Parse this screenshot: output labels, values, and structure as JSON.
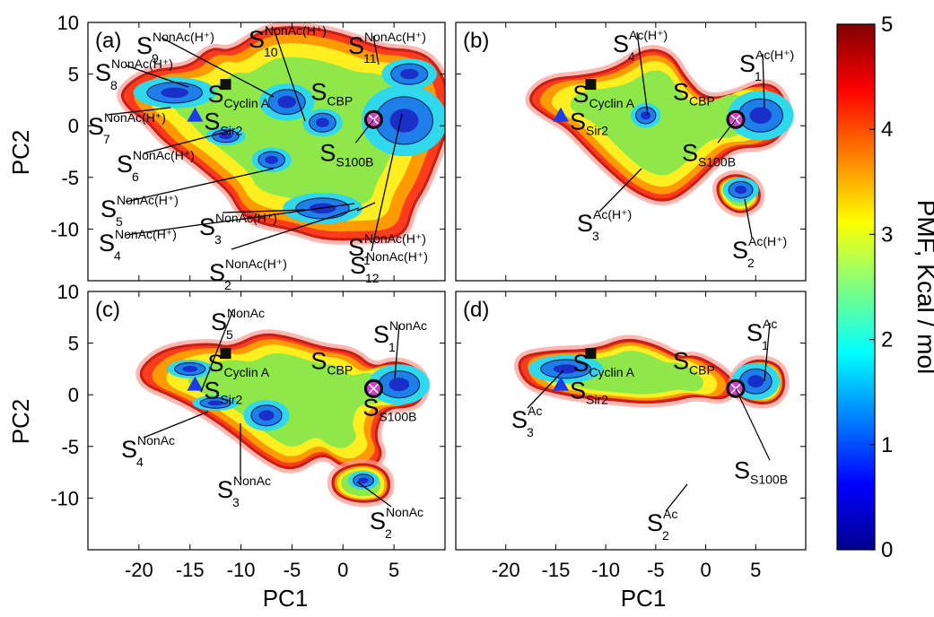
{
  "chart_data": {
    "type": "heatmap",
    "shared_axes": {
      "xlabel": "PC1",
      "ylabel": "PC2",
      "xticks": [
        "-20",
        "-15",
        "-10",
        "-5",
        "0",
        "5"
      ],
      "yticks": [
        "10",
        "5",
        "0",
        "-5",
        "-10"
      ],
      "xlim": [
        -25,
        10
      ],
      "ylim": [
        -15,
        10
      ]
    },
    "colorbar": {
      "title": "PMF, Kcal / mol",
      "range": [
        0,
        5
      ],
      "ticks": [
        "5",
        "4",
        "3",
        "2",
        "1",
        "0"
      ],
      "colors": [
        "#00008f",
        "#0000ff",
        "#0080ff",
        "#00ffff",
        "#80ff80",
        "#ffff00",
        "#ff8000",
        "#ff0000",
        "#800000"
      ]
    },
    "reference_structures": [
      {
        "label": "Cyclin A",
        "marker": "square",
        "color": "#111111",
        "x": -11.5,
        "y": 4.0
      },
      {
        "label": "Sir2",
        "marker": "triangle",
        "color": "#1a3cf0",
        "x": -14.5,
        "y": 1.0
      },
      {
        "label": "CBP",
        "marker": "circle",
        "color": "#d040c8",
        "x": 3.0,
        "y": 0.6
      },
      {
        "label": "S100B",
        "marker": "circle-x",
        "color": "#111111",
        "x": 3.0,
        "y": 0.6
      }
    ],
    "panels": [
      {
        "panel_label": "(a)",
        "basin_sup": "NonAc(H⁺)",
        "states": [
          {
            "index": "1",
            "x": 2.0,
            "y": -7.5
          },
          {
            "index": "2",
            "x": 1.0,
            "y": -7.5
          },
          {
            "index": "3",
            "x": -3.0,
            "y": -8.0
          },
          {
            "index": "4",
            "x": -1.0,
            "y": -3.8
          },
          {
            "index": "5",
            "x": -7.5,
            "y": -3.0
          },
          {
            "index": "6",
            "x": -11.5,
            "y": -1.0
          },
          {
            "index": "7",
            "x": -17.0,
            "y": 1.8
          },
          {
            "index": "8",
            "x": -17.5,
            "y": 3.5
          },
          {
            "index": "9",
            "x": -5.0,
            "y": 2.5
          },
          {
            "index": "10",
            "x": -2.0,
            "y": 0.0
          },
          {
            "index": "11",
            "x": 6.0,
            "y": 5.0
          },
          {
            "index": "12",
            "x": 6.5,
            "y": 0.5
          }
        ]
      },
      {
        "panel_label": "(b)",
        "basin_sup": "Ac(H⁺)",
        "states": [
          {
            "index": "1",
            "x": 5.5,
            "y": 1.0
          },
          {
            "index": "2",
            "x": 3.5,
            "y": -6.0
          },
          {
            "index": "3",
            "x": -7.0,
            "y": -4.0
          },
          {
            "index": "4",
            "x": -5.5,
            "y": 1.0
          }
        ]
      },
      {
        "panel_label": "(c)",
        "basin_sup": "NonAc",
        "states": [
          {
            "index": "1",
            "x": 5.5,
            "y": 1.0
          },
          {
            "index": "2",
            "x": 2.5,
            "y": -8.0
          },
          {
            "index": "3",
            "x": -7.5,
            "y": -2.0
          },
          {
            "index": "4",
            "x": -13.0,
            "y": -1.0
          },
          {
            "index": "5",
            "x": -14.5,
            "y": 2.5
          }
        ]
      },
      {
        "panel_label": "(d)",
        "basin_sup": "Ac",
        "states": [
          {
            "index": "1",
            "x": 5.0,
            "y": 1.5
          },
          {
            "index": "2",
            "x": -0.5,
            "y": -9.0
          },
          {
            "index": "3",
            "x": -14.0,
            "y": 2.0
          }
        ]
      }
    ]
  }
}
